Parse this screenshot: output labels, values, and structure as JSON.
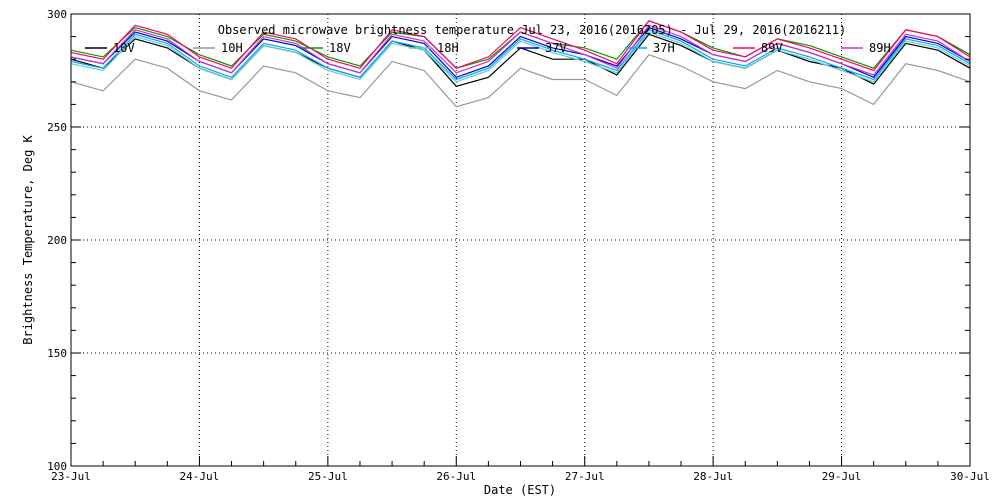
{
  "chart_data": {
    "type": "line",
    "title": "Observed microwave brightness temperature Jul 23, 2016(2016205) - Jul 29, 2016(2016211)",
    "xlabel": "Date (EST)",
    "ylabel": "Brightness Temperature, Deg K",
    "xlim": [
      "2016-07-23",
      "2016-07-30"
    ],
    "ylim": [
      100,
      300
    ],
    "x_ticks": [
      "23-Jul",
      "24-Jul",
      "25-Jul",
      "26-Jul",
      "27-Jul",
      "28-Jul",
      "29-Jul",
      "30-Jul"
    ],
    "y_ticks": [
      100,
      150,
      200,
      250,
      300
    ],
    "grid": true,
    "legend_placement": "top",
    "x": [
      "2016-07-23 00:00",
      "2016-07-23 06:00",
      "2016-07-23 12:00",
      "2016-07-23 18:00",
      "2016-07-24 00:00",
      "2016-07-24 06:00",
      "2016-07-24 12:00",
      "2016-07-24 18:00",
      "2016-07-25 00:00",
      "2016-07-25 06:00",
      "2016-07-25 12:00",
      "2016-07-25 18:00",
      "2016-07-26 00:00",
      "2016-07-26 06:00",
      "2016-07-26 12:00",
      "2016-07-26 18:00",
      "2016-07-27 00:00",
      "2016-07-27 06:00",
      "2016-07-27 12:00",
      "2016-07-27 18:00",
      "2016-07-28 00:00",
      "2016-07-28 06:00",
      "2016-07-28 12:00",
      "2016-07-28 18:00",
      "2016-07-29 00:00",
      "2016-07-29 06:00",
      "2016-07-29 12:00",
      "2016-07-29 18:00",
      "2016-07-30 00:00"
    ],
    "series": [
      {
        "name": "10V",
        "color": "#000000",
        "values": [
          280,
          276,
          289,
          285,
          276,
          271,
          286,
          283,
          276,
          272,
          288,
          284,
          268,
          272,
          285,
          280,
          280,
          273,
          291,
          286,
          279,
          276,
          284,
          279,
          276,
          269,
          287,
          284,
          276
        ]
      },
      {
        "name": "10H",
        "color": "#999999",
        "values": [
          270,
          266,
          280,
          276,
          266,
          262,
          277,
          274,
          266,
          263,
          279,
          275,
          259,
          263,
          276,
          271,
          271,
          264,
          282,
          277,
          270,
          267,
          275,
          270,
          267,
          260,
          278,
          275,
          270
        ]
      },
      {
        "name": "18V",
        "color": "#009900",
        "values": [
          284,
          281,
          294,
          290,
          282,
          277,
          291,
          288,
          281,
          277,
          292,
          290,
          276,
          280,
          292,
          287,
          285,
          280,
          297,
          292,
          285,
          281,
          289,
          286,
          281,
          276,
          293,
          290,
          282
        ]
      },
      {
        "name": "18H",
        "color": "#66cccc",
        "values": [
          278,
          275,
          290,
          286,
          276,
          271,
          286,
          283,
          275,
          271,
          287,
          284,
          270,
          275,
          288,
          283,
          279,
          274,
          292,
          287,
          279,
          276,
          284,
          280,
          275,
          270,
          288,
          285,
          277
        ]
      },
      {
        "name": "37V",
        "color": "#0000cc",
        "values": [
          281,
          278,
          292,
          288,
          279,
          274,
          289,
          286,
          278,
          274,
          290,
          287,
          272,
          277,
          290,
          285,
          282,
          277,
          294,
          289,
          282,
          279,
          287,
          283,
          278,
          272,
          290,
          287,
          279
        ]
      },
      {
        "name": "37H",
        "color": "#00aaff",
        "values": [
          279,
          276,
          291,
          287,
          277,
          272,
          287,
          284,
          276,
          272,
          288,
          285,
          271,
          276,
          289,
          284,
          280,
          275,
          293,
          288,
          280,
          277,
          285,
          281,
          276,
          271,
          289,
          286,
          278
        ]
      },
      {
        "name": "89V",
        "color": "#ff0066",
        "values": [
          283,
          280,
          295,
          291,
          281,
          276,
          292,
          289,
          280,
          276,
          293,
          290,
          276,
          281,
          294,
          289,
          284,
          278,
          297,
          292,
          284,
          281,
          289,
          285,
          280,
          275,
          293,
          290,
          281
        ]
      },
      {
        "name": "89H",
        "color": "#cc33cc",
        "values": [
          281,
          278,
          293,
          289,
          279,
          274,
          290,
          287,
          278,
          274,
          291,
          288,
          274,
          279,
          292,
          287,
          282,
          276,
          295,
          290,
          282,
          279,
          287,
          283,
          278,
          273,
          291,
          288,
          279
        ]
      }
    ]
  }
}
